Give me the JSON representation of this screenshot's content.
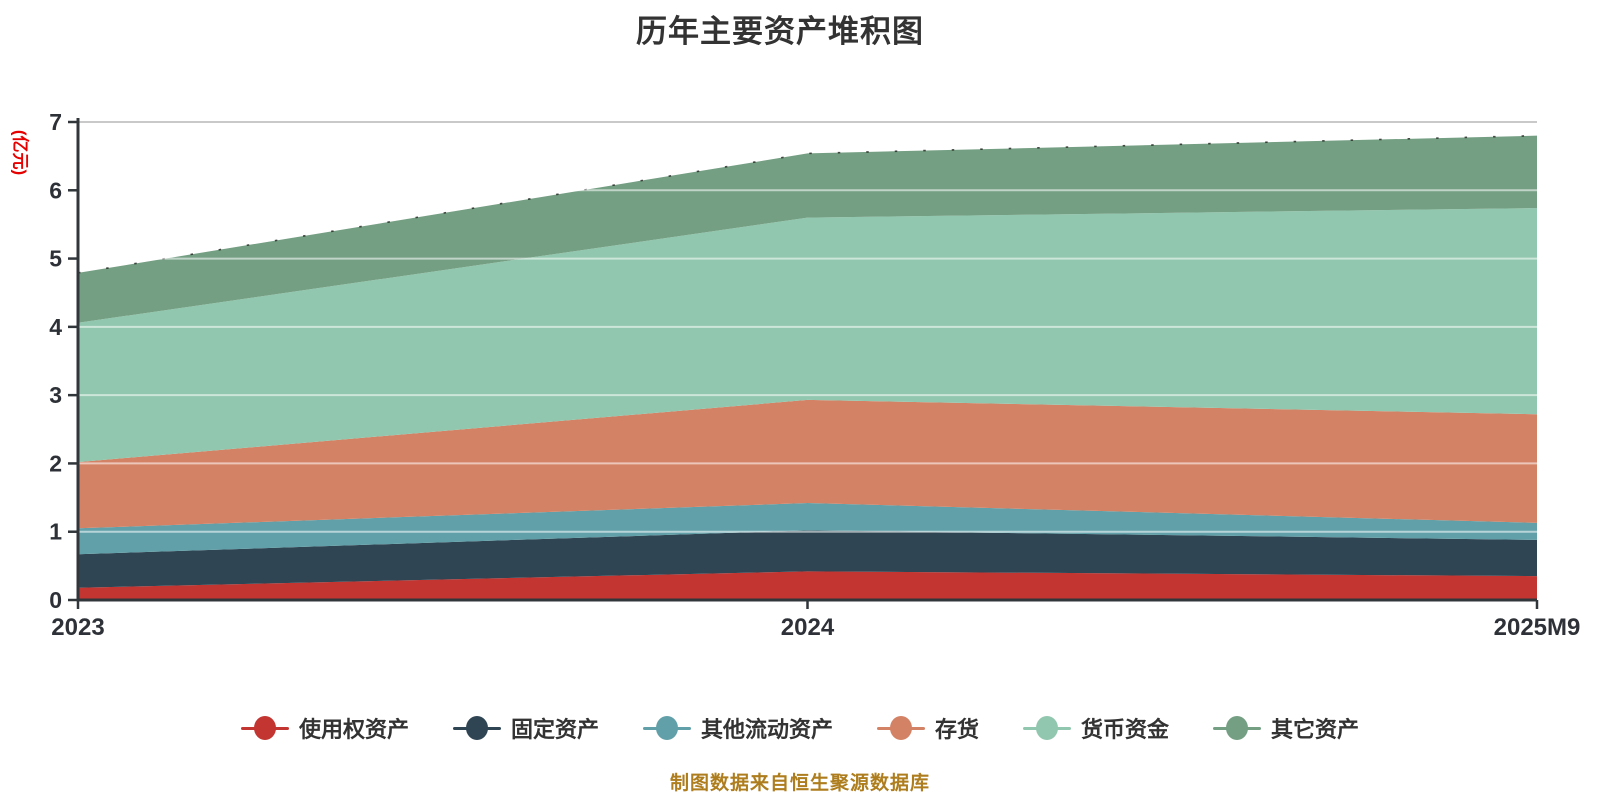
{
  "title": "历年主要资产堆积图",
  "footer": {
    "text": "制图数据来自恒生聚源数据库",
    "color": "#ae7d1d"
  },
  "chart_data": {
    "type": "area",
    "stacked": true,
    "title": "历年主要资产堆积图",
    "categories": [
      "2023",
      "2024",
      "2025M9"
    ],
    "x_axis": {
      "label_color": "#2e3238"
    },
    "y_axis": {
      "name": "(亿元)",
      "name_color": "#e60000",
      "min": 0,
      "max": 7,
      "ticks": [
        0,
        1,
        2,
        3,
        4,
        5,
        6,
        7
      ],
      "label_color": "#2d3137"
    },
    "grid": true,
    "legend_position": "bottom",
    "series": [
      {
        "id": "right-of-use-assets",
        "name": "使用权资产",
        "color": "#c23531",
        "values": [
          0.18,
          0.42,
          0.35
        ]
      },
      {
        "id": "fixed-assets",
        "name": "固定资产",
        "color": "#2f4554",
        "values": [
          0.49,
          0.6,
          0.53
        ]
      },
      {
        "id": "other-current-assets",
        "name": "其他流动资产",
        "color": "#61a0a8",
        "values": [
          0.38,
          0.4,
          0.25
        ]
      },
      {
        "id": "inventory",
        "name": "存货",
        "color": "#d48265",
        "values": [
          0.97,
          1.51,
          1.59
        ]
      },
      {
        "id": "monetary-funds",
        "name": "货币资金",
        "color": "#91c7ae",
        "values": [
          2.04,
          2.67,
          3.02
        ]
      },
      {
        "id": "other-assets",
        "name": "其它资产",
        "color": "#749f83",
        "values": [
          0.73,
          0.94,
          1.06
        ]
      }
    ],
    "stacked_totals": [
      4.79,
      6.54,
      6.8
    ]
  }
}
